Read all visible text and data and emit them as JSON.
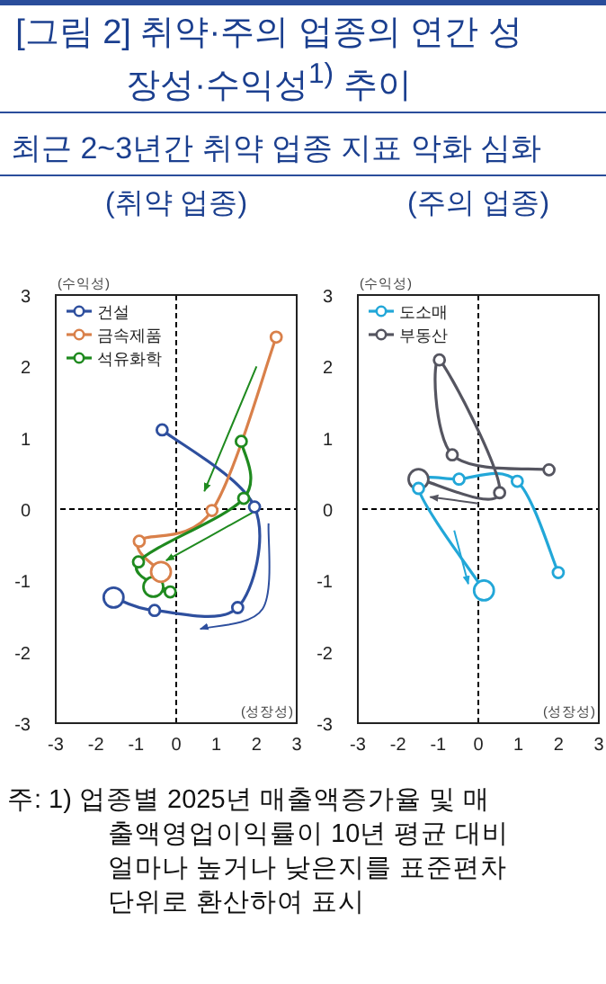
{
  "chart_data": [
    {
      "type": "other",
      "title": "[그림 2] 취약·주의 업종의 연간 성장성·수익성$^{1)}$ 추이",
      "subtitle": "최근 2~3년간 취약 업종 지표 악화 심화"
    },
    {
      "type": "line",
      "title": "(취약 업종)",
      "xlabel": "(성장성)",
      "ylabel": "(수익성)",
      "xlim": [
        -3,
        3
      ],
      "ylim": [
        -3,
        3
      ],
      "xticks": [
        -3,
        -2,
        -1,
        0,
        1,
        2,
        3
      ],
      "yticks": [
        -3,
        -2,
        -1,
        0,
        1,
        2,
        3
      ],
      "grid": false,
      "legend": "top left",
      "marker": "circle",
      "line_style": "solid",
      "ref_lines": [
        {
          "axis": "x",
          "value": 0,
          "color": "#000000",
          "line_style": "dashed"
        },
        {
          "axis": "y",
          "value": 0,
          "color": "#000000",
          "line_style": "dashed"
        }
      ],
      "series": [
        {
          "name": "건설",
          "color": "#2e4f9e",
          "x": [
            -0.35,
            1.95,
            1.53,
            -0.54,
            -1.56
          ],
          "values": [
            1.11,
            0.03,
            -1.38,
            -1.42,
            -1.24
          ]
        },
        {
          "name": "금속제품",
          "color": "#d9804a",
          "x": [
            2.49,
            0.89,
            -0.92,
            -0.38
          ],
          "values": [
            2.41,
            -0.02,
            -0.45,
            -0.88
          ]
        },
        {
          "name": "석유화학",
          "color": "#1f8a1f",
          "x": [
            1.62,
            1.68,
            -0.94,
            -0.15,
            -0.57
          ],
          "values": [
            0.95,
            0.15,
            -0.74,
            -1.16,
            -1.09
          ]
        }
      ]
    },
    {
      "type": "line",
      "title": "(주의 업종)",
      "xlabel": "(성장성)",
      "ylabel": "(수익성)",
      "xlim": [
        -3,
        3
      ],
      "ylim": [
        -3,
        3
      ],
      "xticks": [
        -3,
        -2,
        -1,
        0,
        1,
        2,
        3
      ],
      "yticks": [
        -3,
        -2,
        -1,
        0,
        1,
        2,
        3
      ],
      "grid": false,
      "legend": "top left",
      "marker": "circle",
      "line_style": "solid",
      "ref_lines": [
        {
          "axis": "x",
          "value": 0,
          "color": "#000000",
          "line_style": "dashed"
        },
        {
          "axis": "y",
          "value": 0,
          "color": "#000000",
          "line_style": "dashed"
        }
      ],
      "series": [
        {
          "name": "도소매",
          "color": "#22a7d8",
          "x": [
            1.99,
            0.97,
            -0.48,
            -1.49,
            0.14
          ],
          "values": [
            -0.89,
            0.39,
            0.42,
            0.29,
            -1.14
          ]
        },
        {
          "name": "부동산",
          "color": "#555560",
          "x": [
            1.76,
            -0.65,
            -0.97,
            0.53,
            -1.49
          ],
          "values": [
            0.55,
            0.76,
            2.09,
            0.23,
            0.42
          ]
        }
      ]
    },
    {
      "type": "other",
      "annotations": [
        "주: 1) 업종별 2025년 매출액증가율 및 매출액영업이익률이 10년 평균 대비 얼마나 높거나 낮은지를 표준편차 단위로 환산하여 표시"
      ]
    }
  ]
}
